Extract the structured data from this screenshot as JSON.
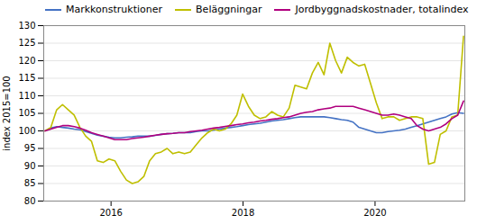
{
  "chart_data": {
    "type": "line",
    "title": "",
    "ylabel": "index 2015=100",
    "x": [
      2015.0,
      2015.088056,
      2015.176111,
      2015.264167,
      2015.352222,
      2015.440278,
      2015.528333,
      2015.616389,
      2015.704444,
      2015.7925,
      2015.880556,
      2015.968611,
      2016.056667,
      2016.144722,
      2016.232778,
      2016.320833,
      2016.408889,
      2016.496944,
      2016.585,
      2016.673056,
      2016.761111,
      2016.849167,
      2016.937222,
      2017.025278,
      2017.113333,
      2017.201389,
      2017.289444,
      2017.3775,
      2017.465556,
      2017.553611,
      2017.641667,
      2017.729722,
      2017.817778,
      2017.905833,
      2017.993889,
      2018.081944,
      2018.17,
      2018.258056,
      2018.346111,
      2018.434167,
      2018.522222,
      2018.610278,
      2018.698333,
      2018.786389,
      2018.874444,
      2018.9625,
      2019.050556,
      2019.138611,
      2019.226667,
      2019.314722,
      2019.402778,
      2019.490833,
      2019.578889,
      2019.666944,
      2019.755,
      2019.843056,
      2019.931111,
      2020.019167,
      2020.107222,
      2020.195278,
      2020.283333,
      2020.371389,
      2020.459444,
      2020.5475,
      2020.635556,
      2020.723611,
      2020.811667,
      2020.899722,
      2020.987778,
      2021.075833,
      2021.163889,
      2021.251944,
      2021.34
    ],
    "series": [
      {
        "name": "Markkonstruktioner",
        "color": "#4472C4",
        "values": [
          100.0,
          100.8,
          101.2,
          101.0,
          100.8,
          100.5,
          100.3,
          99.8,
          99.3,
          98.8,
          98.5,
          98.2,
          98.0,
          98.0,
          98.2,
          98.3,
          98.5,
          98.5,
          98.5,
          98.7,
          99.0,
          99.2,
          99.3,
          99.5,
          99.5,
          99.5,
          99.8,
          100.0,
          100.0,
          100.2,
          100.5,
          100.8,
          101.0,
          101.2,
          101.5,
          101.8,
          102.0,
          102.2,
          102.5,
          102.8,
          103.0,
          103.2,
          103.5,
          103.8,
          104.0,
          104.0,
          104.0,
          104.0,
          104.0,
          103.8,
          103.5,
          103.2,
          103.0,
          102.5,
          101.0,
          100.5,
          100.0,
          99.5,
          99.5,
          99.8,
          100.0,
          100.2,
          100.5,
          101.0,
          101.5,
          102.0,
          102.5,
          103.0,
          103.5,
          104.0,
          104.8,
          105.2,
          105.0
        ]
      },
      {
        "name": "Beläggningar",
        "color": "#BFBF00",
        "values": [
          100.0,
          101.0,
          106.0,
          107.5,
          106.0,
          104.5,
          101.0,
          98.5,
          97.0,
          91.5,
          91.0,
          92.0,
          91.5,
          88.5,
          86.0,
          85.0,
          85.5,
          87.0,
          91.5,
          93.5,
          94.0,
          95.0,
          93.5,
          94.0,
          93.5,
          94.0,
          96.0,
          98.0,
          99.5,
          100.5,
          100.0,
          100.5,
          102.0,
          104.5,
          110.5,
          107.0,
          104.5,
          103.5,
          104.0,
          105.5,
          104.5,
          104.0,
          106.5,
          113.0,
          112.5,
          112.0,
          116.5,
          119.5,
          116.0,
          125.0,
          120.0,
          116.5,
          121.0,
          119.5,
          118.5,
          119.0,
          113.5,
          108.0,
          103.5,
          104.0,
          104.0,
          103.0,
          103.5,
          104.0,
          104.0,
          103.5,
          90.5,
          91.0,
          99.0,
          100.0,
          104.0,
          104.5,
          127.0
        ]
      },
      {
        "name": "Jordbyggnadskostnader, totalindex",
        "color": "#B0007F",
        "values": [
          100.0,
          100.5,
          101.0,
          101.5,
          101.5,
          101.2,
          100.8,
          100.2,
          99.5,
          99.0,
          98.5,
          98.0,
          97.5,
          97.5,
          97.5,
          97.8,
          98.0,
          98.2,
          98.5,
          98.8,
          99.0,
          99.2,
          99.3,
          99.5,
          99.5,
          99.8,
          100.0,
          100.2,
          100.5,
          100.8,
          101.0,
          101.3,
          101.5,
          101.8,
          102.0,
          102.3,
          102.5,
          102.8,
          103.0,
          103.3,
          103.5,
          103.8,
          104.0,
          104.5,
          105.0,
          105.3,
          105.5,
          106.0,
          106.3,
          106.5,
          107.0,
          107.0,
          107.0,
          107.0,
          106.5,
          106.0,
          105.5,
          105.0,
          104.5,
          104.5,
          104.8,
          104.5,
          104.0,
          103.5,
          101.5,
          100.5,
          100.0,
          100.5,
          101.0,
          102.0,
          103.5,
          104.5,
          108.5
        ]
      }
    ],
    "xlim": [
      2014.98,
      2021.36
    ],
    "xticks": [
      2016,
      2018,
      2020
    ],
    "ylim": [
      80,
      130
    ],
    "yticks": [
      80,
      85,
      90,
      95,
      100,
      105,
      110,
      115,
      120,
      125,
      130
    ],
    "grid": true,
    "legend": "upper left"
  }
}
